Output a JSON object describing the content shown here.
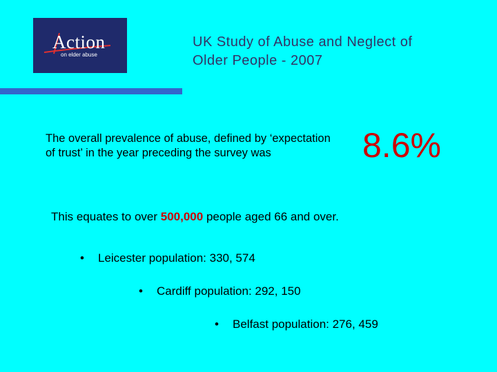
{
  "logo": {
    "main_text": "Action",
    "sub_text": "on elder abuse"
  },
  "title": {
    "line1": "UK Study of Abuse and Neglect of",
    "line2": "Older People - 2007"
  },
  "prevalence": {
    "text": "The overall prevalence of abuse, defined by ‘expectation of trust’ in the year preceding the survey was",
    "value": "8.6%"
  },
  "equates": {
    "prefix": "This equates to over ",
    "highlight": "500,000",
    "suffix": " people aged 66 and over."
  },
  "bullets": [
    {
      "marker": "•",
      "text": "Leicester population: 330, 574"
    },
    {
      "marker": "•",
      "text": "Cardiff population: 292, 150"
    },
    {
      "marker": "•",
      "text": "Belfast population: 276, 459"
    }
  ],
  "colors": {
    "background": "#00FFFF",
    "title": "#333366",
    "accent_red": "#CC0000",
    "rule_blue": "#3366CC",
    "logo_bg": "#1F2A6B"
  }
}
